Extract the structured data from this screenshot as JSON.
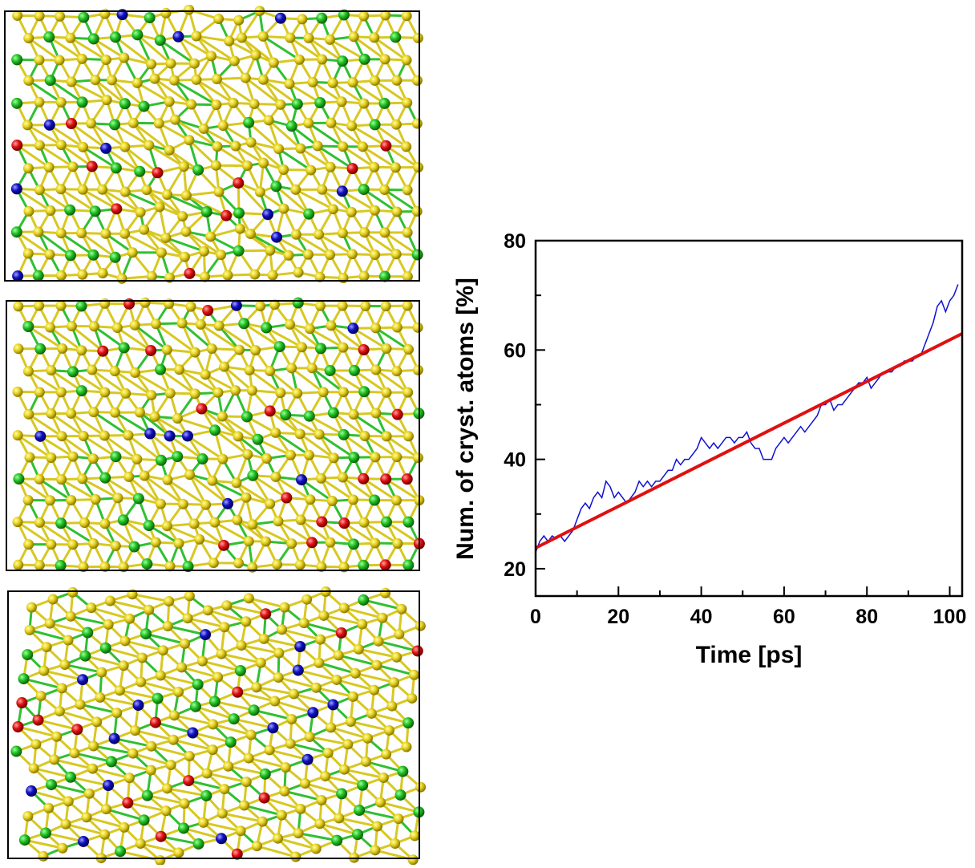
{
  "chart_data": {
    "type": "line",
    "xlabel": "Time [ps]",
    "ylabel": "Num. of cryst. atoms [%]",
    "xlim": [
      0,
      103
    ],
    "ylim": [
      15,
      80
    ],
    "xticks": [
      0,
      20,
      40,
      60,
      80,
      100
    ],
    "yticks": [
      20,
      40,
      60,
      80
    ],
    "xminorticks": [
      10,
      30,
      50,
      70,
      90
    ],
    "yminorticks": [
      30,
      50,
      70
    ],
    "series": [
      {
        "color": "#1010d0",
        "width": 1.5,
        "x": [
          0,
          1,
          2,
          3,
          4,
          5,
          6,
          7,
          8,
          9,
          10,
          11,
          12,
          13,
          14,
          15,
          16,
          17,
          18,
          19,
          20,
          21,
          22,
          23,
          24,
          25,
          26,
          27,
          28,
          29,
          30,
          31,
          32,
          33,
          34,
          35,
          36,
          37,
          38,
          39,
          40,
          41,
          42,
          43,
          44,
          45,
          46,
          47,
          48,
          49,
          50,
          51,
          52,
          53,
          54,
          55,
          56,
          57,
          58,
          59,
          60,
          61,
          62,
          63,
          64,
          65,
          66,
          67,
          68,
          69,
          70,
          71,
          72,
          73,
          74,
          75,
          76,
          77,
          78,
          79,
          80,
          81,
          82,
          83,
          84,
          85,
          86,
          87,
          88,
          89,
          90,
          91,
          92,
          93,
          94,
          95,
          96,
          97,
          98,
          99,
          100,
          101,
          102
        ],
        "values": [
          23,
          25,
          26,
          25,
          26,
          25.5,
          26,
          25,
          26,
          27,
          29,
          31,
          32,
          31,
          33,
          34,
          33,
          36,
          35,
          33,
          34,
          33,
          32,
          33,
          34,
          36,
          35,
          36,
          35,
          36,
          36,
          37,
          38,
          38,
          40,
          39,
          40,
          40,
          41,
          42,
          44,
          43,
          42,
          43,
          42,
          43,
          44,
          44,
          43,
          44,
          44,
          45,
          43,
          42,
          42,
          40,
          40,
          40,
          42,
          43,
          44,
          43,
          44,
          45,
          46,
          45,
          46,
          47,
          48,
          50,
          50,
          51,
          49,
          50,
          50,
          51,
          52,
          53,
          54,
          54,
          55,
          53,
          54,
          55,
          56,
          56,
          56,
          57,
          57,
          58,
          58,
          58,
          59,
          59,
          61,
          63,
          65,
          68,
          69,
          67,
          69,
          70,
          72
        ]
      },
      {
        "color": "#e01010",
        "width": 4,
        "x": [
          0,
          103
        ],
        "values": [
          23.8,
          63
        ]
      }
    ]
  }
}
